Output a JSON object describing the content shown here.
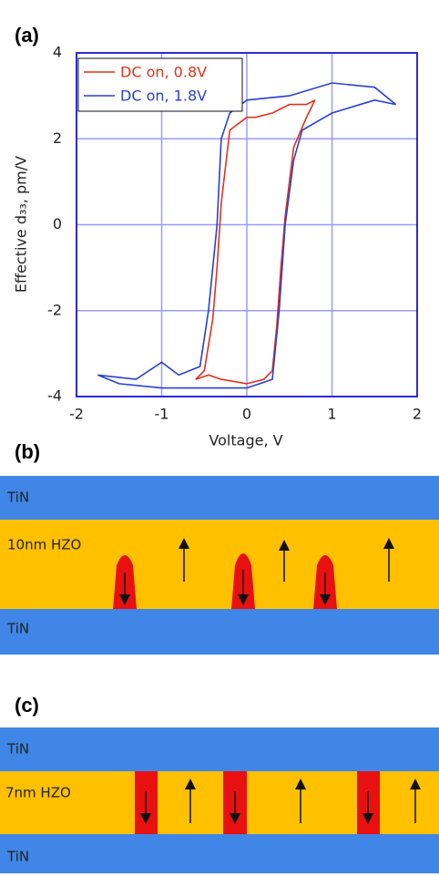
{
  "chart_data": {
    "type": "line",
    "panel_label": "(a)",
    "x_label": "Voltage, V",
    "y_label": "Effective d₃₃, pm/V",
    "xlim": [
      -2,
      2
    ],
    "xticks": [
      -2,
      -1,
      0,
      1,
      2
    ],
    "ylim": [
      -4,
      4
    ],
    "yticks": [
      -4,
      -2,
      0,
      2,
      4
    ],
    "grid": true,
    "grid_color": "#9a9aff",
    "axis_color": "#2b2bd6",
    "legend": "upper left",
    "series": [
      {
        "name": "DC on, 0.8V",
        "color": "#e0321e",
        "x": [
          0.8,
          0.7,
          0.5,
          0.3,
          0.1,
          0.0,
          -0.2,
          -0.3,
          -0.35,
          -0.4,
          -0.5,
          -0.6,
          -0.45,
          -0.3,
          0.0,
          0.2,
          0.3,
          0.35,
          0.4,
          0.45,
          0.55,
          0.7,
          0.8
        ],
        "values": [
          2.9,
          2.8,
          2.8,
          2.6,
          2.5,
          2.5,
          2.2,
          0.5,
          -1.0,
          -2.2,
          -3.4,
          -3.6,
          -3.5,
          -3.6,
          -3.7,
          -3.6,
          -3.4,
          -2.4,
          -1.0,
          0.2,
          1.8,
          2.5,
          2.9
        ]
      },
      {
        "name": "DC on, 1.8V",
        "color": "#2b3fd0",
        "x": [
          1.75,
          1.5,
          1.0,
          0.5,
          0.0,
          -0.2,
          -0.3,
          -0.35,
          -0.45,
          -0.55,
          -0.8,
          -1.0,
          -1.3,
          -1.75,
          -1.5,
          -1.0,
          -0.5,
          0.0,
          0.3,
          0.38,
          0.45,
          0.55,
          0.65,
          1.0,
          1.5,
          1.75
        ],
        "values": [
          2.8,
          3.2,
          3.3,
          3.0,
          2.9,
          2.6,
          2.0,
          0.0,
          -2.0,
          -3.3,
          -3.5,
          -3.2,
          -3.6,
          -3.5,
          -3.7,
          -3.8,
          -3.8,
          -3.8,
          -3.6,
          -2.0,
          0.0,
          1.5,
          2.2,
          2.6,
          2.9,
          2.8
        ]
      }
    ]
  },
  "diagrams": [
    {
      "label": "(b)",
      "top_layer": "TiN",
      "middle_layer": "10nm HZO",
      "bottom_layer": "TiN"
    },
    {
      "label": "(c)",
      "top_layer": "TiN",
      "middle_layer": "7nm HZO",
      "bottom_layer": "TiN"
    }
  ]
}
